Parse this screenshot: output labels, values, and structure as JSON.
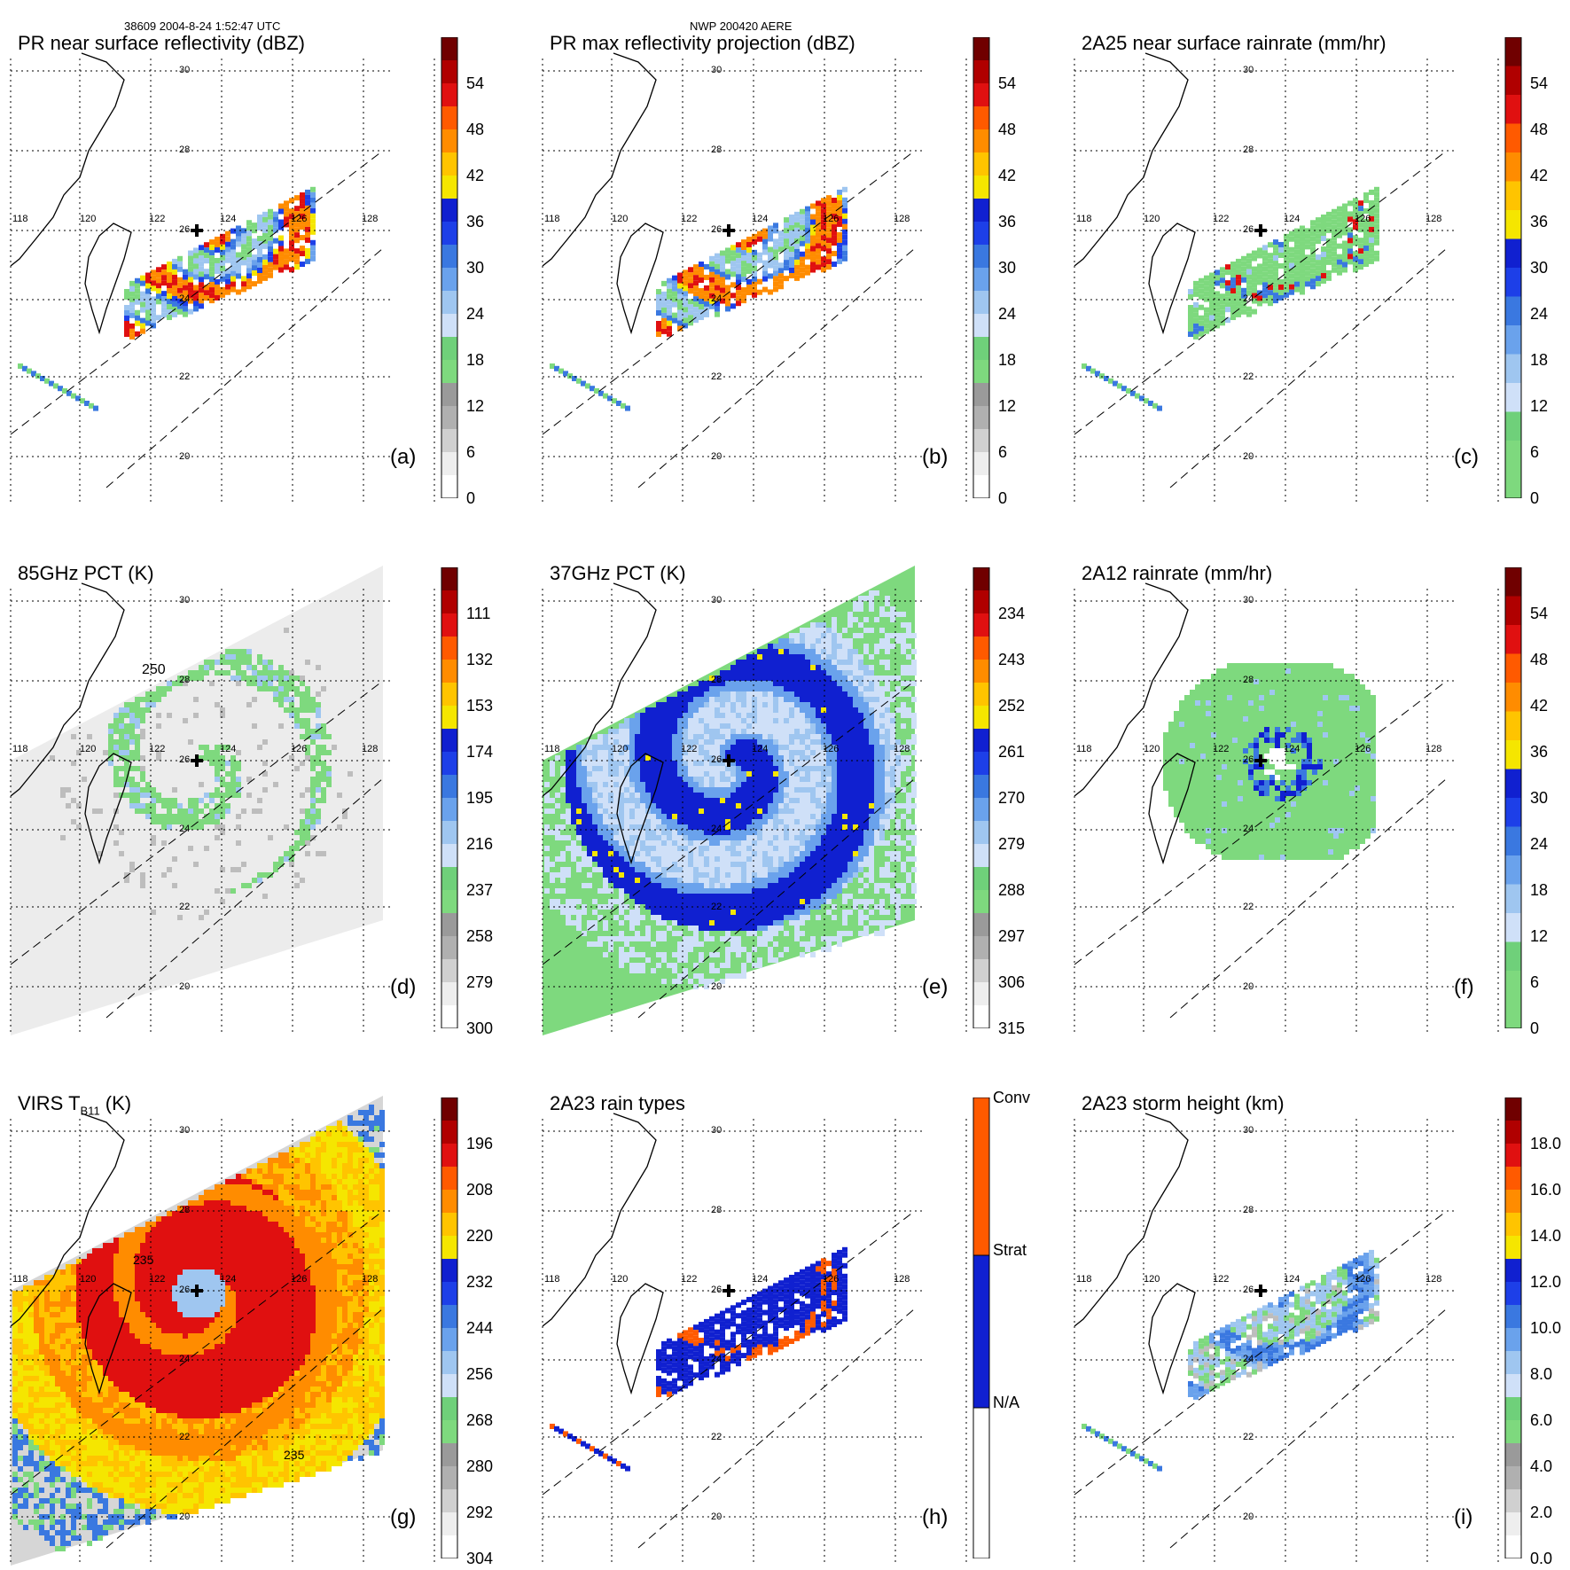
{
  "header": {
    "left_caption": "38609 2004-8-24 1:52:47 UTC",
    "center_caption": "NWP 200420 AERE"
  },
  "colors": {
    "grid": "#000000",
    "rain_green": "#7ed97e",
    "light_blue": "#9fc6f0",
    "mid_blue": "#3a78e0",
    "deep_blue": "#1020d0",
    "yellow": "#f5e600",
    "orange": "#ff8c00",
    "red": "#e01010",
    "dark_red": "#700000",
    "gray": "#9a9a9a"
  },
  "map_labels": {
    "lon": [
      "118",
      "120",
      "122",
      "124",
      "126",
      "128"
    ],
    "lat": [
      "30",
      "28",
      "26",
      "24",
      "22",
      "20"
    ]
  },
  "chart_data": [
    {
      "type": "heatmap",
      "id": "a",
      "title": "PR near surface reflectivity (dBZ)",
      "panel_label": "(a)",
      "colorbar_ticks": [
        "54",
        "48",
        "42",
        "36",
        "30",
        "24",
        "18",
        "12",
        "6",
        "0"
      ],
      "colorbar_range": [
        0,
        60
      ]
    },
    {
      "type": "heatmap",
      "id": "b",
      "title": "PR max reflectivity projection (dBZ)",
      "panel_label": "(b)",
      "colorbar_ticks": [
        "54",
        "48",
        "42",
        "36",
        "30",
        "24",
        "18",
        "12",
        "6",
        "0"
      ],
      "colorbar_range": [
        0,
        60
      ]
    },
    {
      "type": "heatmap",
      "id": "c",
      "title": "2A25 near surface rainrate (mm/hr)",
      "panel_label": "(c)",
      "colorbar_ticks": [
        "54",
        "48",
        "42",
        "36",
        "30",
        "24",
        "18",
        "12",
        "6",
        "0"
      ],
      "colorbar_range": [
        0,
        60
      ]
    },
    {
      "type": "heatmap",
      "id": "d",
      "title": "85GHz PCT (K)",
      "panel_label": "(d)",
      "contour_label": "250",
      "colorbar_ticks": [
        "111",
        "132",
        "153",
        "174",
        "195",
        "216",
        "237",
        "258",
        "279",
        "300"
      ],
      "colorbar_range": [
        90,
        300
      ]
    },
    {
      "type": "heatmap",
      "id": "e",
      "title": "37GHz PCT (K)",
      "panel_label": "(e)",
      "colorbar_ticks": [
        "234",
        "243",
        "252",
        "261",
        "270",
        "279",
        "288",
        "297",
        "306",
        "315"
      ],
      "colorbar_range": [
        225,
        315
      ]
    },
    {
      "type": "heatmap",
      "id": "f",
      "title": "2A12 rainrate (mm/hr)",
      "panel_label": "(f)",
      "colorbar_ticks": [
        "54",
        "48",
        "42",
        "36",
        "30",
        "24",
        "18",
        "12",
        "6",
        "0"
      ],
      "colorbar_range": [
        0,
        60
      ]
    },
    {
      "type": "heatmap",
      "id": "g",
      "title": "VIRS T",
      "title_sub": "B11",
      "title_suffix": " (K)",
      "panel_label": "(g)",
      "contour_labels": [
        "235",
        "235"
      ],
      "colorbar_ticks": [
        "196",
        "208",
        "220",
        "232",
        "244",
        "256",
        "268",
        "280",
        "292",
        "304"
      ],
      "colorbar_range": [
        184,
        304
      ]
    },
    {
      "type": "heatmap",
      "id": "h",
      "title": "2A23 rain types",
      "panel_label": "(h)",
      "categories": [
        "Conv",
        "Strat",
        "N/A"
      ]
    },
    {
      "type": "heatmap",
      "id": "i",
      "title": "2A23 storm height (km)",
      "panel_label": "(i)",
      "colorbar_ticks": [
        "18.0",
        "16.0",
        "14.0",
        "12.0",
        "10.0",
        "8.0",
        "6.0",
        "4.0",
        "2.0",
        "0.0"
      ],
      "colorbar_range": [
        0,
        20
      ]
    }
  ]
}
